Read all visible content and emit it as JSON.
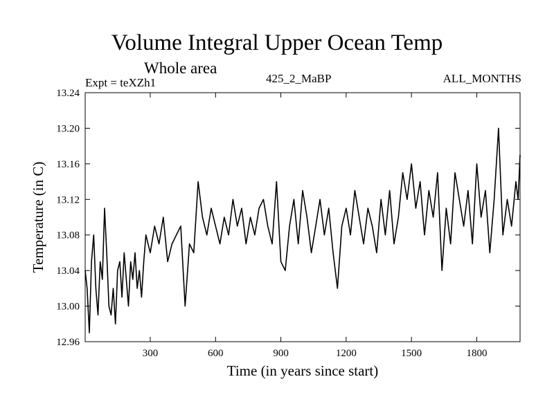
{
  "chart_data": {
    "type": "line",
    "title": "Volume Integral Upper Ocean Temp",
    "subtitle": "Whole area",
    "experiment_label": "Expt = teXZh1",
    "experiment_id": "425_2_MaBP",
    "period": "ALL_MONTHS",
    "xlabel": "Time (in years since start)",
    "ylabel": "Temperature (in C)",
    "xlim": [
      1,
      1999
    ],
    "ylim": [
      12.96,
      13.24
    ],
    "xticks": [
      300,
      600,
      900,
      1200,
      1500,
      1800
    ],
    "xtick_labels": [
      "300",
      "600",
      "900",
      "1200",
      "1500",
      "1800"
    ],
    "yticks": [
      12.96,
      13.0,
      13.04,
      13.08,
      13.12,
      13.16,
      13.2,
      13.24
    ],
    "ytick_labels": [
      "12.96",
      "13.00",
      "13.04",
      "13.08",
      "13.12",
      "13.16",
      "13.20",
      "13.24"
    ],
    "grid": false,
    "series": [
      {
        "name": "Volume integral upper ocean temperature",
        "color": "#000000",
        "x": [
          1,
          10,
          20,
          30,
          40,
          50,
          60,
          70,
          80,
          90,
          100,
          110,
          120,
          130,
          140,
          150,
          160,
          170,
          180,
          190,
          200,
          210,
          220,
          230,
          240,
          250,
          260,
          270,
          280,
          290,
          300,
          320,
          340,
          360,
          380,
          400,
          420,
          440,
          460,
          480,
          500,
          520,
          540,
          560,
          580,
          600,
          620,
          640,
          660,
          680,
          700,
          720,
          740,
          760,
          780,
          800,
          820,
          840,
          860,
          880,
          900,
          920,
          940,
          960,
          980,
          1000,
          1020,
          1040,
          1060,
          1080,
          1100,
          1120,
          1140,
          1160,
          1180,
          1200,
          1220,
          1240,
          1260,
          1280,
          1300,
          1320,
          1340,
          1360,
          1380,
          1400,
          1420,
          1440,
          1460,
          1480,
          1500,
          1520,
          1540,
          1560,
          1580,
          1600,
          1620,
          1640,
          1660,
          1680,
          1700,
          1720,
          1740,
          1760,
          1780,
          1800,
          1820,
          1840,
          1860,
          1880,
          1900,
          1920,
          1940,
          1960,
          1980,
          1990,
          1999
        ],
        "y": [
          13.04,
          13.02,
          12.97,
          13.05,
          13.08,
          13.02,
          12.99,
          13.05,
          13.03,
          13.11,
          13.06,
          13.0,
          12.99,
          13.02,
          12.98,
          13.04,
          13.05,
          13.01,
          13.06,
          13.03,
          13.0,
          13.05,
          13.03,
          13.06,
          13.02,
          13.04,
          13.01,
          13.05,
          13.08,
          13.07,
          13.06,
          13.09,
          13.07,
          13.1,
          13.05,
          13.07,
          13.08,
          13.09,
          13.0,
          13.07,
          13.06,
          13.14,
          13.1,
          13.08,
          13.11,
          13.09,
          13.07,
          13.1,
          13.08,
          13.12,
          13.09,
          13.11,
          13.07,
          13.1,
          13.08,
          13.11,
          13.12,
          13.09,
          13.07,
          13.14,
          13.05,
          13.04,
          13.09,
          13.12,
          13.07,
          13.13,
          13.1,
          13.06,
          13.09,
          13.12,
          13.08,
          13.11,
          13.06,
          13.02,
          13.09,
          13.11,
          13.08,
          13.13,
          13.1,
          13.07,
          13.11,
          13.09,
          13.06,
          13.12,
          13.08,
          13.13,
          13.07,
          13.1,
          13.15,
          13.12,
          13.16,
          13.11,
          13.14,
          13.08,
          13.13,
          13.1,
          13.15,
          13.04,
          13.11,
          13.07,
          13.15,
          13.12,
          13.09,
          13.13,
          13.07,
          13.16,
          13.1,
          13.13,
          13.06,
          13.12,
          13.2,
          13.08,
          13.12,
          13.09,
          13.14,
          13.12,
          13.17
        ]
      }
    ]
  }
}
